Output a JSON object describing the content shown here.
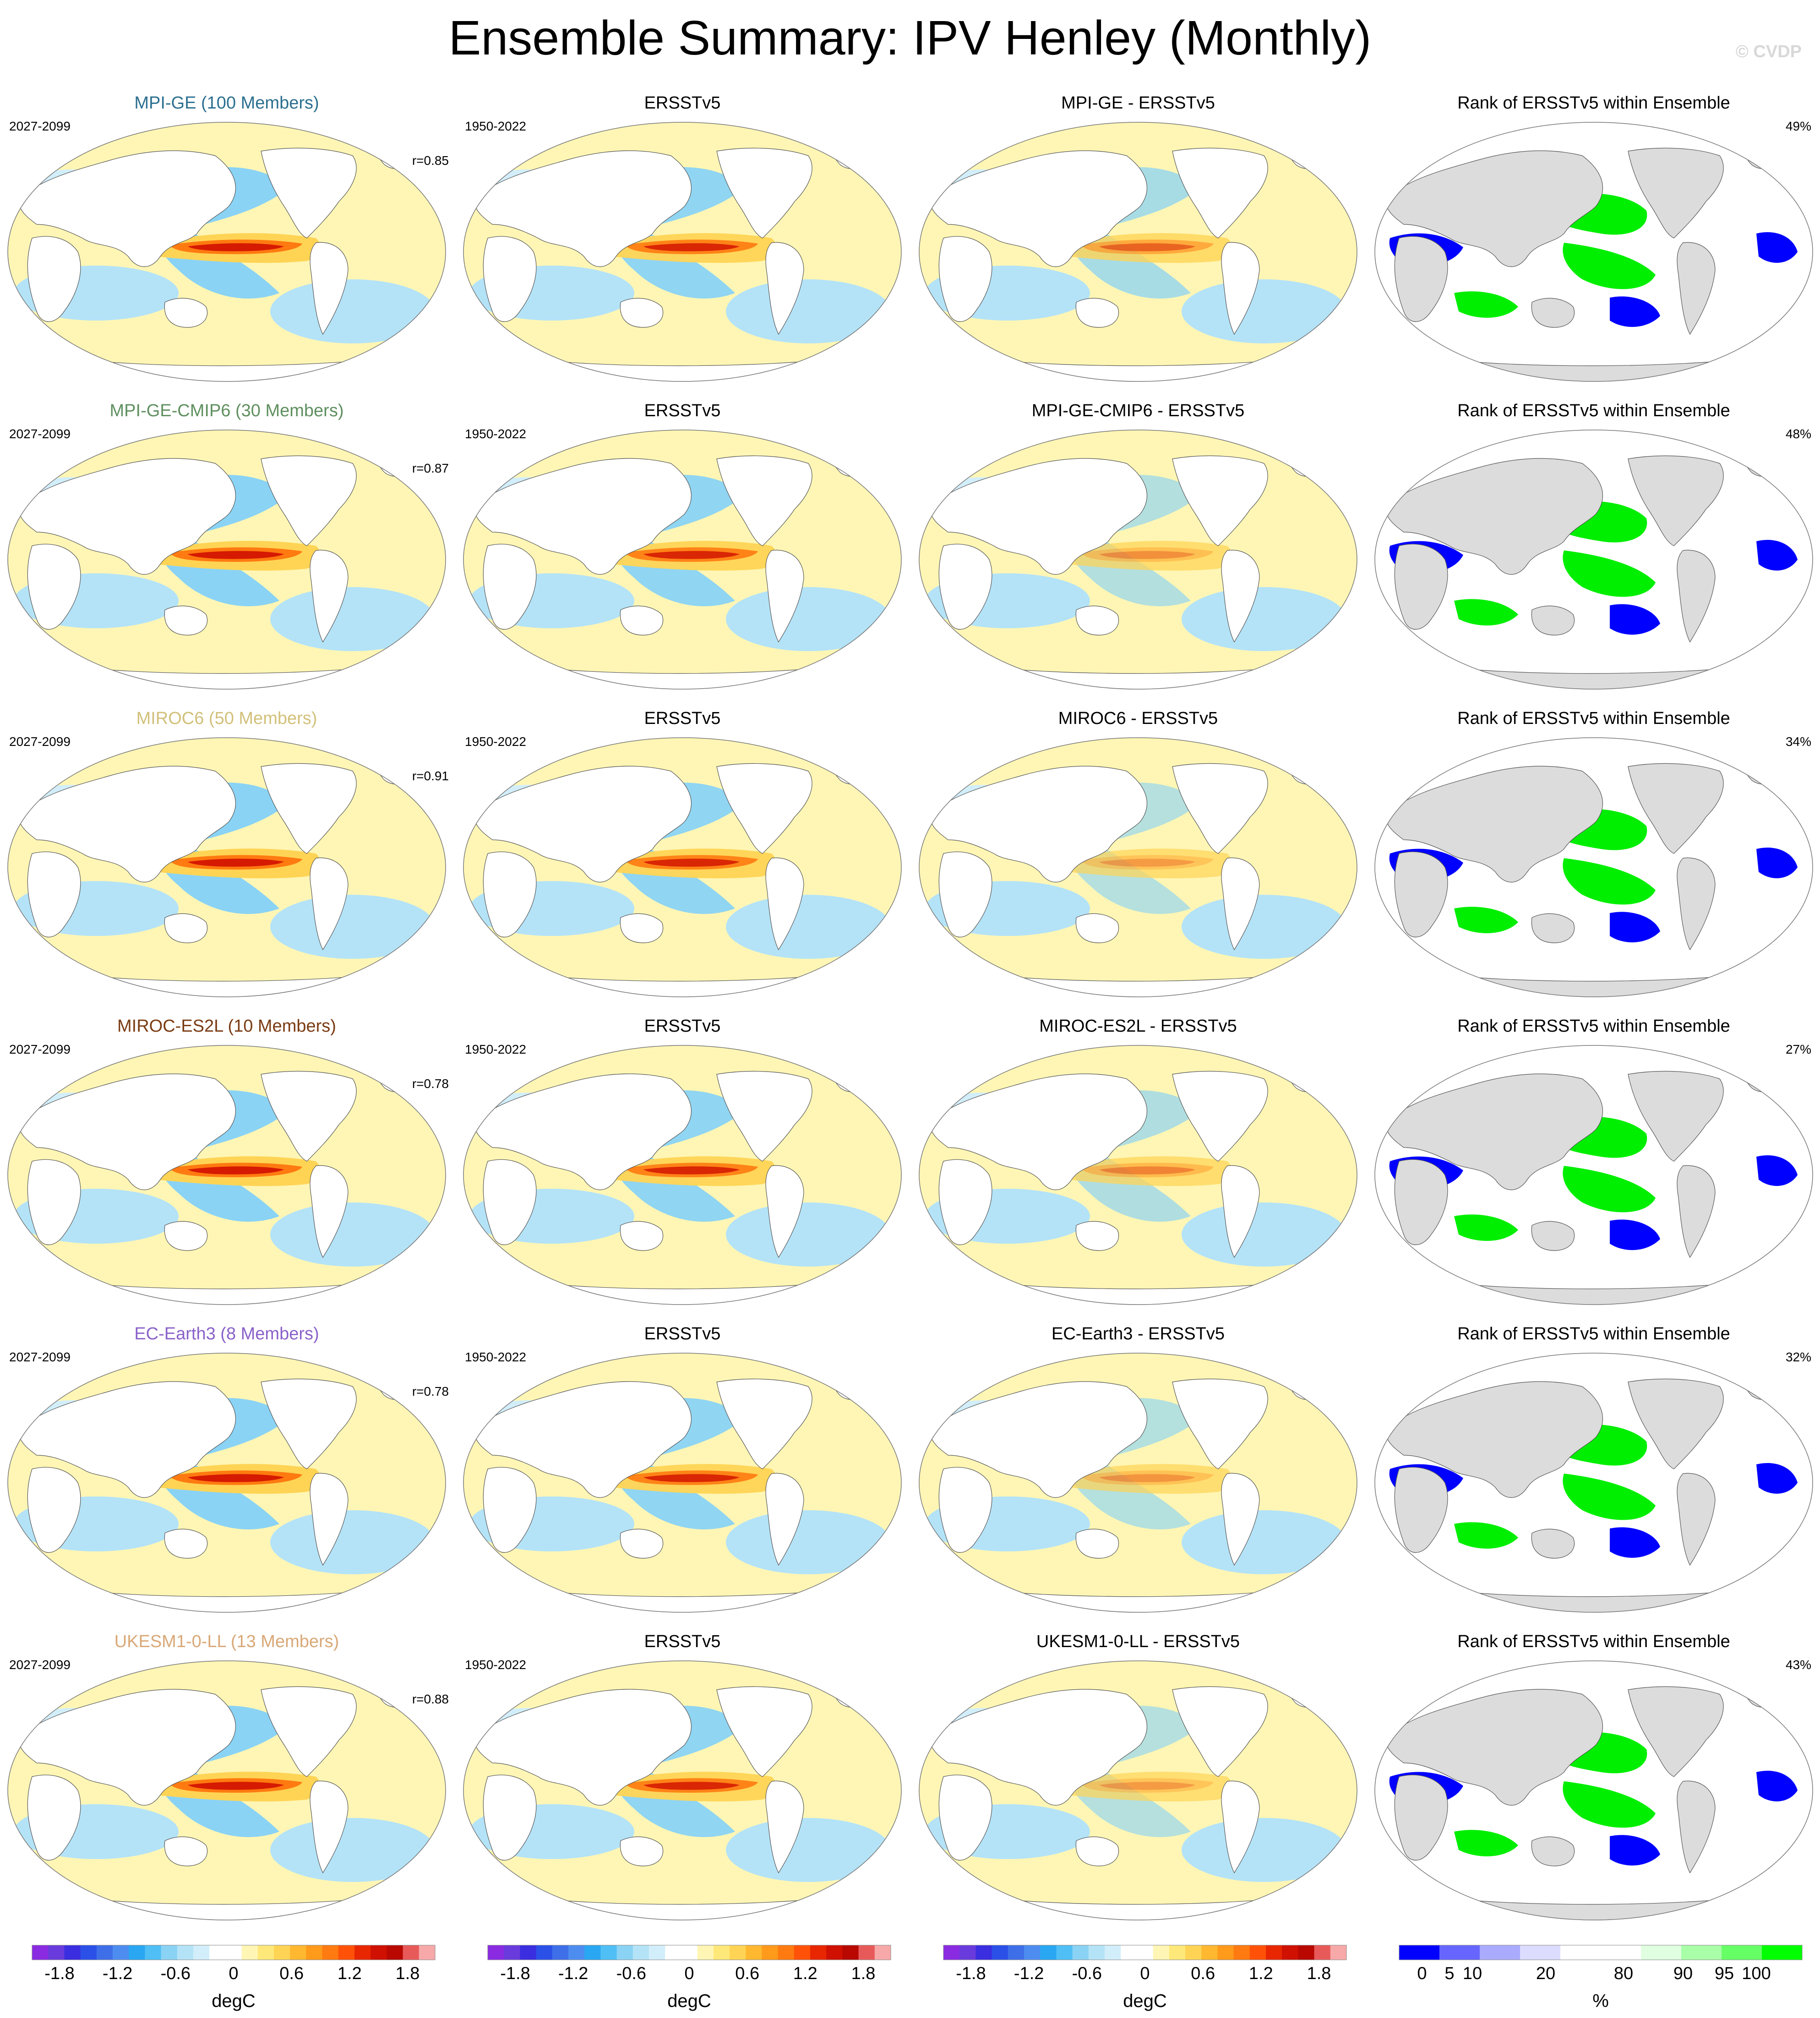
{
  "title": "Ensemble Summary: IPV Henley (Monthly)",
  "credit": "© CVDP",
  "diff_suffix": " - ERSSTv5",
  "obs_name": "ERSSTv5",
  "rank_title": "Rank of ERSSTv5 within Ensemble",
  "rows": [
    {
      "model_label": "MPI-GE (100 Members)",
      "model_color": "#2b6f8f",
      "diff_label": "MPI-GE - ERSSTv5",
      "model_period": "2027-2099",
      "obs_period": "1950-2022",
      "r": "r=0.85",
      "rank_pct": "49%",
      "diff_scale": 1.0
    },
    {
      "model_label": "MPI-GE-CMIP6 (30 Members)",
      "model_color": "#5f8f5f",
      "diff_label": "MPI-GE-CMIP6 - ERSSTv5",
      "model_period": "2027-2099",
      "obs_period": "1950-2022",
      "r": "r=0.87",
      "rank_pct": "48%",
      "diff_scale": 0.6
    },
    {
      "model_label": "MIROC6 (50 Members)",
      "model_color": "#d2c07a",
      "diff_label": "MIROC6 - ERSSTv5",
      "model_period": "2027-2099",
      "obs_period": "1950-2022",
      "r": "r=0.91",
      "rank_pct": "34%",
      "diff_scale": 0.5
    },
    {
      "model_label": "MIROC-ES2L (10 Members)",
      "model_color": "#7a3b12",
      "diff_label": "MIROC-ES2L - ERSSTv5",
      "model_period": "2027-2099",
      "obs_period": "1950-2022",
      "r": "r=0.78",
      "rank_pct": "27%",
      "diff_scale": 0.7
    },
    {
      "model_label": "EC-Earth3 (8 Members)",
      "model_color": "#8a62c9",
      "diff_label": "EC-Earth3 - ERSSTv5",
      "model_period": "2027-2099",
      "obs_period": "1950-2022",
      "r": "r=0.78",
      "rank_pct": "32%",
      "diff_scale": 0.55
    },
    {
      "model_label": "UKESM1-0-LL (13 Members)",
      "model_color": "#d9a877",
      "diff_label": "UKESM1-0-LL - ERSSTv5",
      "model_period": "2027-2099",
      "obs_period": "1950-2022",
      "r": "r=0.88",
      "rank_pct": "43%",
      "diff_scale": 0.45
    }
  ],
  "colorbars": {
    "degC": {
      "label": "degC",
      "ticks": [
        "-1.8",
        "-1.2",
        "-0.6",
        "0",
        "0.6",
        "1.2",
        "1.8"
      ],
      "colors": [
        "#8a2be2",
        "#6a3bdc",
        "#3a2ee0",
        "#2b50e8",
        "#3f6fe8",
        "#4d8df0",
        "#2aa7f2",
        "#50bff5",
        "#8ad3f5",
        "#b4e3f7",
        "#d2eefa",
        "#ffffff",
        "#ffffff",
        "#fff6b5",
        "#ffe87a",
        "#ffd455",
        "#ffb830",
        "#ff9a1a",
        "#ff7a10",
        "#ff5208",
        "#e82600",
        "#d01000",
        "#b80800",
        "#e85a5a",
        "#f7a8a8"
      ]
    },
    "rank": {
      "label": "%",
      "ticks": [
        "0",
        "5",
        "10",
        "20",
        "80",
        "90",
        "95",
        "100"
      ],
      "colors": [
        "#0000ff",
        "#6666ff",
        "#aaaaff",
        "#dcdcff",
        "#ffffff",
        "#ffffff",
        "#e0ffe0",
        "#a8ffa8",
        "#66ff66",
        "#00ff00"
      ]
    }
  }
}
